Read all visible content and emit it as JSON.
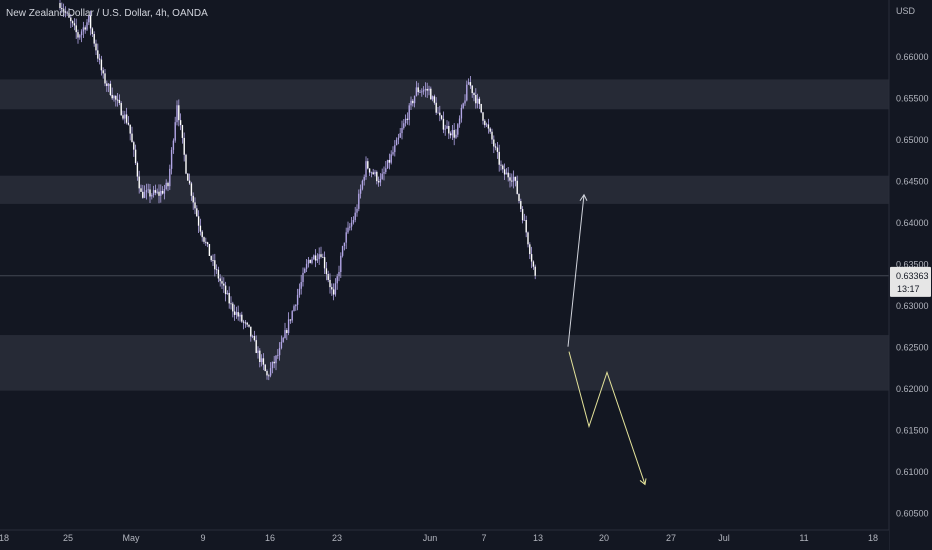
{
  "header": {
    "title": "New Zealand Dollar / U.S. Dollar, 4h, OANDA",
    "currency": "USD"
  },
  "price_axis": {
    "ticks": [
      "0.66000",
      "0.65500",
      "0.65000",
      "0.64500",
      "0.64000",
      "0.63500",
      "0.63000",
      "0.62500",
      "0.62000",
      "0.61500",
      "0.61000",
      "0.60500"
    ],
    "current_price": "0.63363",
    "countdown": "13:17"
  },
  "time_axis": {
    "ticks": [
      "18",
      "25",
      "May",
      "9",
      "16",
      "23",
      "Jun",
      "7",
      "13",
      "20",
      "27",
      "Jul",
      "11",
      "18"
    ]
  },
  "colors": {
    "background": "#131722",
    "zone": "#2a2e39",
    "candle": "#b2a6e6",
    "up_arrow": "#d1d4dc",
    "down_path": "#e4e39a",
    "axis_text": "#b2b5be"
  },
  "chart_data": {
    "type": "candlestick",
    "symbol": "NZDUSD",
    "timeframe": "4h",
    "ylim": [
      0.6035,
      0.6665
    ],
    "last_price": 0.63363,
    "zones": [
      {
        "from": 0.6537,
        "to": 0.6573
      },
      {
        "from": 0.6423,
        "to": 0.6457
      },
      {
        "from": 0.6198,
        "to": 0.6265
      }
    ],
    "anchors": [
      [
        0,
        0.6665
      ],
      [
        10,
        0.6625
      ],
      [
        16,
        0.6645
      ],
      [
        24,
        0.6575
      ],
      [
        38,
        0.652
      ],
      [
        45,
        0.6435
      ],
      [
        55,
        0.6435
      ],
      [
        60,
        0.6445
      ],
      [
        65,
        0.6545
      ],
      [
        70,
        0.6465
      ],
      [
        77,
        0.64
      ],
      [
        85,
        0.635
      ],
      [
        95,
        0.63
      ],
      [
        105,
        0.627
      ],
      [
        115,
        0.6215
      ],
      [
        122,
        0.6245
      ],
      [
        130,
        0.63
      ],
      [
        138,
        0.6355
      ],
      [
        145,
        0.6365
      ],
      [
        152,
        0.631
      ],
      [
        158,
        0.638
      ],
      [
        164,
        0.641
      ],
      [
        170,
        0.647
      ],
      [
        178,
        0.645
      ],
      [
        188,
        0.65
      ],
      [
        198,
        0.656
      ],
      [
        205,
        0.656
      ],
      [
        212,
        0.652
      ],
      [
        220,
        0.6505
      ],
      [
        227,
        0.657
      ],
      [
        232,
        0.6545
      ],
      [
        240,
        0.65
      ],
      [
        246,
        0.646
      ],
      [
        252,
        0.6455
      ],
      [
        258,
        0.64
      ],
      [
        264,
        0.6336
      ]
    ],
    "projection_up": [
      [
        0.6251,
        0.6434
      ]
    ],
    "projection_down": [
      0.6245,
      0.6155,
      0.622,
      0.6085
    ]
  }
}
